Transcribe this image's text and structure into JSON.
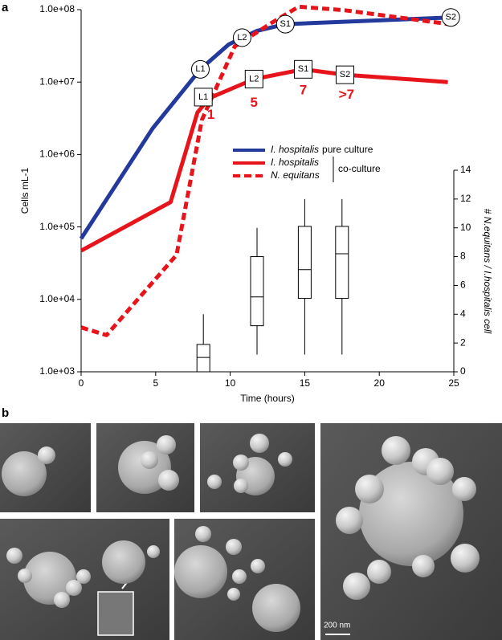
{
  "chart_data": {
    "type": "line",
    "panel_label": "a",
    "ylabel": "Cells mL-1",
    "xlabel": "Time (hours)",
    "y2label": "# N.equitans / I.hospitalis cell",
    "xlim": [
      0,
      25
    ],
    "xticks": [
      0,
      5,
      10,
      15,
      20,
      25
    ],
    "ylim": [
      1000,
      100000000
    ],
    "log_y": true,
    "yticks": [
      {
        "value": 1000,
        "label": "1.0e+03"
      },
      {
        "value": 10000,
        "label": "1.0e+04"
      },
      {
        "value": 100000,
        "label": "1.0e+05"
      },
      {
        "value": 1000000,
        "label": "1.0e+06"
      },
      {
        "value": 10000000,
        "label": "1.0e+07"
      },
      {
        "value": 100000000,
        "label": "1.0e+08"
      }
    ],
    "y2lim": [
      0,
      14
    ],
    "y2ticks": [
      0,
      2,
      4,
      6,
      8,
      10,
      12,
      14
    ],
    "legend": "center-right",
    "legend_notes": [
      "pure culture",
      "co-culture"
    ],
    "series": [
      {
        "name": "I. hospitalis",
        "color": "#23399b",
        "style": "solid",
        "x": [
          0,
          4.8,
          8.0,
          9.9,
          11.8,
          13.7,
          24.8
        ],
        "values": [
          69000,
          2300000,
          15000000,
          33000000,
          51000000,
          63000000,
          78000000
        ]
      },
      {
        "name": "I. hospitalis",
        "color": "#e8141b",
        "style": "solid",
        "x": [
          0,
          6.0,
          7.8,
          8.6,
          11.6,
          14.9,
          17.7,
          24.6
        ],
        "values": [
          47000,
          220000,
          3800000,
          6000000,
          11000000,
          15000000,
          12600000,
          10000000
        ]
      },
      {
        "name": "N. equitans",
        "color": "#e8141b",
        "style": "dashed",
        "x": [
          0,
          1.7,
          6.4,
          8.1,
          10.3,
          12.9,
          14.6,
          17.7,
          24.7
        ],
        "values": [
          4100,
          3200,
          41000,
          3000000,
          31000000,
          68000000,
          110000000,
          98000000,
          63000000
        ]
      }
    ],
    "boxes": {
      "axis": "y2",
      "x": [
        8.2,
        11.8,
        15.0,
        17.5
      ],
      "low": [
        0,
        1.2,
        1.2,
        1.2
      ],
      "q1": [
        0,
        3.2,
        5.1,
        5.1
      ],
      "median": [
        1,
        5.2,
        7.1,
        8.2
      ],
      "q3": [
        1.9,
        8.0,
        10.1,
        10.1
      ],
      "high": [
        4,
        10,
        12,
        12
      ]
    },
    "annotations": [
      {
        "text": "L1",
        "x": 8.0,
        "y": 15000000,
        "shape": "circle"
      },
      {
        "text": "L2",
        "x": 10.8,
        "y": 41000000,
        "shape": "circle"
      },
      {
        "text": "S1",
        "x": 13.7,
        "y": 63000000,
        "shape": "circle"
      },
      {
        "text": "S2",
        "x": 24.8,
        "y": 78000000,
        "shape": "circle"
      },
      {
        "text": "L1",
        "x": 8.2,
        "y": 6200000,
        "shape": "square"
      },
      {
        "text": "L2",
        "x": 11.6,
        "y": 11000000,
        "shape": "square"
      },
      {
        "text": "S1",
        "x": 14.9,
        "y": 15000000,
        "shape": "square"
      },
      {
        "text": "S2",
        "x": 17.7,
        "y": 12600000,
        "shape": "square"
      },
      {
        "text": "1",
        "x": 8.7,
        "y": 3500000,
        "color": "#e8141b"
      },
      {
        "text": "5",
        "x": 11.6,
        "y": 5100000,
        "color": "#e8141b"
      },
      {
        "text": "7",
        "x": 14.9,
        "y": 7600000,
        "color": "#e8141b"
      },
      {
        "text": ">7",
        "x": 17.8,
        "y": 6600000,
        "color": "#e8141b"
      }
    ]
  },
  "figure_b": {
    "panel_label": "b",
    "scale_bar": "200 nm"
  }
}
